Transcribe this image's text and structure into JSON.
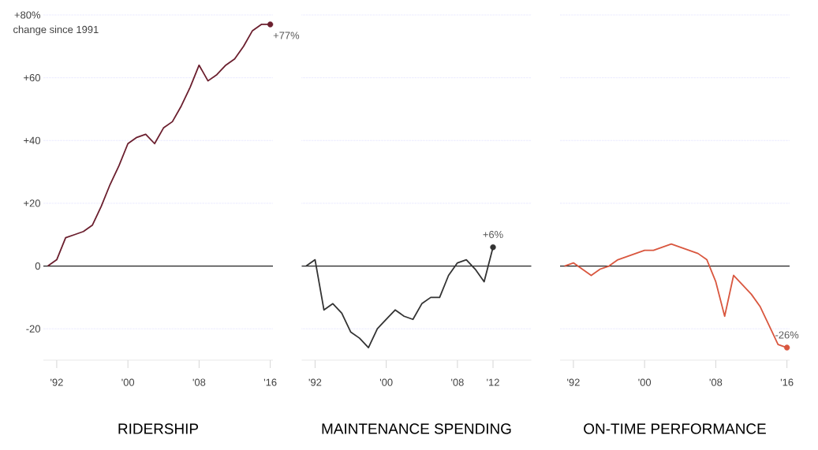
{
  "chart_data": [
    {
      "type": "line",
      "title": "RIDERSHIP",
      "annotations": [
        "change since 1991"
      ],
      "xlim": [
        1990.5,
        2016.3
      ],
      "ylim": [
        -30,
        80
      ],
      "xticks": [
        {
          "value": 1992,
          "label": "'92"
        },
        {
          "value": 2000,
          "label": "'00"
        },
        {
          "value": 2008,
          "label": "'08"
        },
        {
          "value": 2016,
          "label": "'16"
        }
      ],
      "yticks": [
        {
          "value": 80,
          "label": "+80%"
        },
        {
          "value": 60,
          "label": "+60"
        },
        {
          "value": 40,
          "label": "+40"
        },
        {
          "value": 20,
          "label": "+20"
        },
        0,
        -20
      ],
      "grid": "y",
      "ref_lines": [
        {
          "axis": "y",
          "value": 0,
          "color": "#222222"
        }
      ],
      "series": [
        {
          "color": "#6b1f2e",
          "x": [
            1991,
            1992,
            1993,
            1994,
            1995,
            1996,
            1997,
            1998,
            1999,
            2000,
            2001,
            2002,
            2003,
            2004,
            2005,
            2006,
            2007,
            2008,
            2009,
            2010,
            2011,
            2012,
            2013,
            2014,
            2015,
            2016
          ],
          "values": [
            0,
            2,
            9,
            10,
            11,
            13,
            19,
            26,
            32,
            39,
            41,
            42,
            39,
            44,
            46,
            51,
            57,
            64,
            59,
            61,
            64,
            66,
            70,
            75,
            77,
            77
          ]
        },
        {
          "type": "scatter",
          "color": "#6b1f2e",
          "x": [
            2016
          ],
          "values": [
            77
          ],
          "value_labels": [
            "+77%"
          ]
        }
      ]
    },
    {
      "type": "line",
      "title": "MAINTENANCE SPENDING",
      "tick_labels": "x",
      "xlim": [
        1990.5,
        2016.3
      ],
      "ylim": [
        -30,
        80
      ],
      "xticks": [
        {
          "value": 1992,
          "label": "'92"
        },
        {
          "value": 2000,
          "label": "'00"
        },
        {
          "value": 2008,
          "label": "'08"
        },
        {
          "value": 2012,
          "label": "'12"
        }
      ],
      "yticks": [
        80,
        60,
        40,
        20,
        0,
        -20
      ],
      "grid": "y",
      "ref_lines": [
        {
          "axis": "y",
          "value": 0,
          "color": "#222222"
        }
      ],
      "series": [
        {
          "color": "#333333",
          "x": [
            1991,
            1992,
            1993,
            1994,
            1995,
            1996,
            1997,
            1998,
            1999,
            2000,
            2001,
            2002,
            2003,
            2004,
            2005,
            2006,
            2007,
            2008,
            2009,
            2010,
            2011,
            2012
          ],
          "values": [
            0,
            2,
            -14,
            -12,
            -15,
            -21,
            -23,
            -26,
            -20,
            -17,
            -14,
            -16,
            -17,
            -12,
            -10,
            -10,
            -3,
            1,
            2,
            -1,
            -5,
            6
          ]
        },
        {
          "type": "scatter",
          "color": "#333333",
          "x": [
            2012
          ],
          "values": [
            6
          ],
          "value_labels": [
            "+6%"
          ]
        }
      ]
    },
    {
      "type": "line",
      "title": "ON-TIME PERFORMANCE",
      "tick_labels": "x",
      "xlim": [
        1990.5,
        2016.3
      ],
      "ylim": [
        -30,
        80
      ],
      "xticks": [
        {
          "value": 1992,
          "label": "'92"
        },
        {
          "value": 2000,
          "label": "'00"
        },
        {
          "value": 2008,
          "label": "'08"
        },
        {
          "value": 2016,
          "label": "'16"
        }
      ],
      "yticks": [
        80,
        60,
        40,
        20,
        0,
        -20
      ],
      "grid": "y",
      "ref_lines": [
        {
          "axis": "y",
          "value": 0,
          "color": "#222222"
        }
      ],
      "series": [
        {
          "color": "#d9573f",
          "x": [
            1991,
            1992,
            1993,
            1994,
            1995,
            1996,
            1997,
            1998,
            1999,
            2000,
            2001,
            2002,
            2003,
            2004,
            2005,
            2006,
            2007,
            2008,
            2009,
            2010,
            2011,
            2012,
            2013,
            2014,
            2015,
            2016
          ],
          "values": [
            0,
            1,
            -1,
            -3,
            -1,
            0,
            2,
            3,
            4,
            5,
            5,
            6,
            7,
            6,
            5,
            4,
            2,
            -5,
            -16,
            -3,
            -6,
            -9,
            -13,
            -19,
            -25,
            -26
          ]
        },
        {
          "type": "scatter",
          "color": "#d9573f",
          "x": [
            2016
          ],
          "values": [
            -26
          ],
          "value_labels": [
            "-26%"
          ]
        }
      ]
    }
  ]
}
